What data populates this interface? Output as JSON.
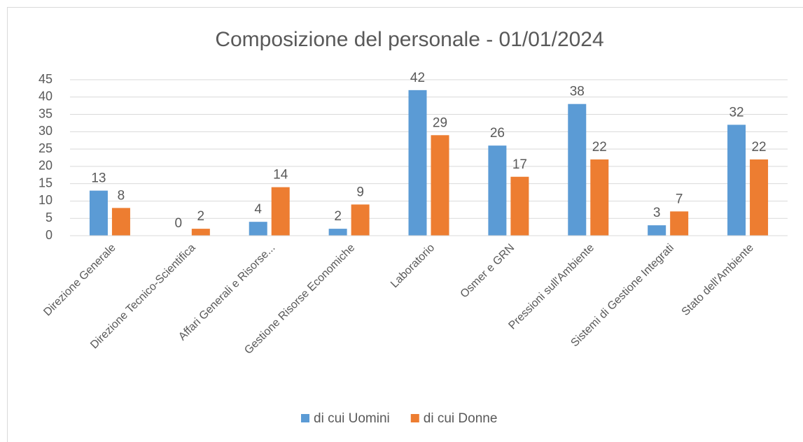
{
  "chart_data": {
    "type": "bar",
    "title": "Composizione del personale - 01/01/2024",
    "categories": [
      "Direzione Generale",
      "Direzione Tecnico-Scientifica",
      "Affari Generali e Risorse...",
      "Gestione Risorse Economiche",
      "Laboratorio",
      "Osmer e GRN",
      "Pressioni sull'Ambiente",
      "Sistemi di Gestione Integrati",
      "Stato dell'Ambiente"
    ],
    "series": [
      {
        "name": "di cui Uomini",
        "color": "#5b9bd5",
        "values": [
          13,
          0,
          4,
          2,
          42,
          26,
          38,
          3,
          32
        ]
      },
      {
        "name": "di cui Donne",
        "color": "#ed7d31",
        "values": [
          8,
          2,
          14,
          9,
          29,
          17,
          22,
          7,
          22
        ]
      }
    ],
    "ylim": [
      0,
      45
    ],
    "yticks": [
      0,
      5,
      10,
      15,
      20,
      25,
      30,
      35,
      40,
      45
    ],
    "grid": true,
    "legend": "bottom"
  }
}
